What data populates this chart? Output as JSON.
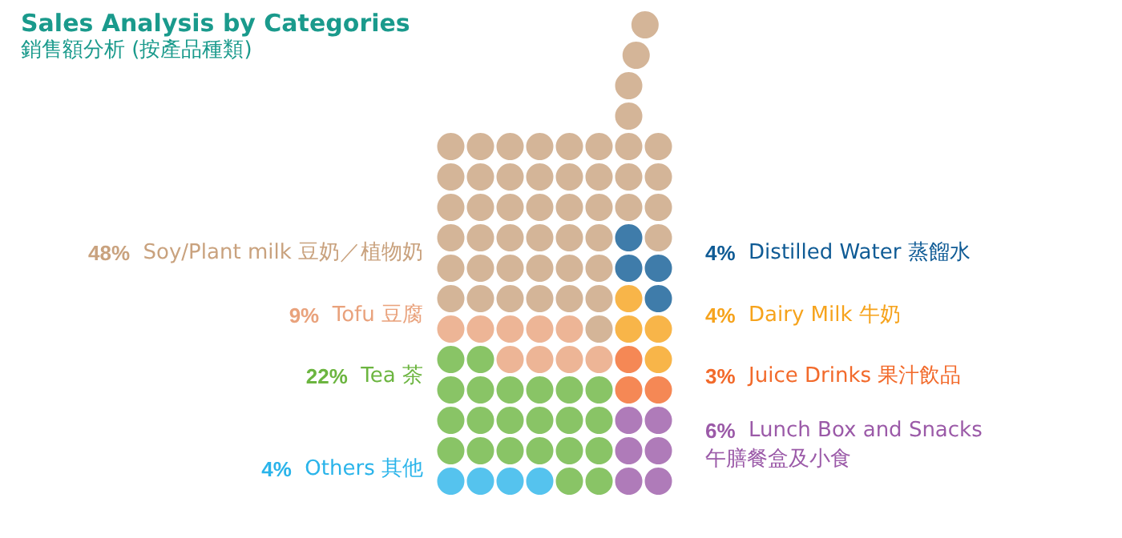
{
  "chart_data": {
    "type": "other",
    "title": "Sales Analysis by Categories",
    "subtitle": "銷售額分析 (按產品種類)",
    "categories": [
      "Soy/Plant milk 豆奶／植物奶",
      "Tofu 豆腐",
      "Tea 茶",
      "Others 其他",
      "Distilled Water 蒸餾水",
      "Dairy Milk 牛奶",
      "Juice Drinks 果汁飲品",
      "Lunch Box and Snacks\n午膳餐盒及小食"
    ],
    "values": [
      48,
      9,
      22,
      4,
      4,
      4,
      3,
      6
    ],
    "value_labels": [
      "48%",
      "9%",
      "22%",
      "4%",
      "4%",
      "4%",
      "3%",
      "6%"
    ],
    "colors": [
      "#c9a27e",
      "#e9a27c",
      "#6cb540",
      "#2ab4ea",
      "#0f5b95",
      "#f6a31c",
      "#f26a2b",
      "#9b5aa8"
    ]
  }
}
